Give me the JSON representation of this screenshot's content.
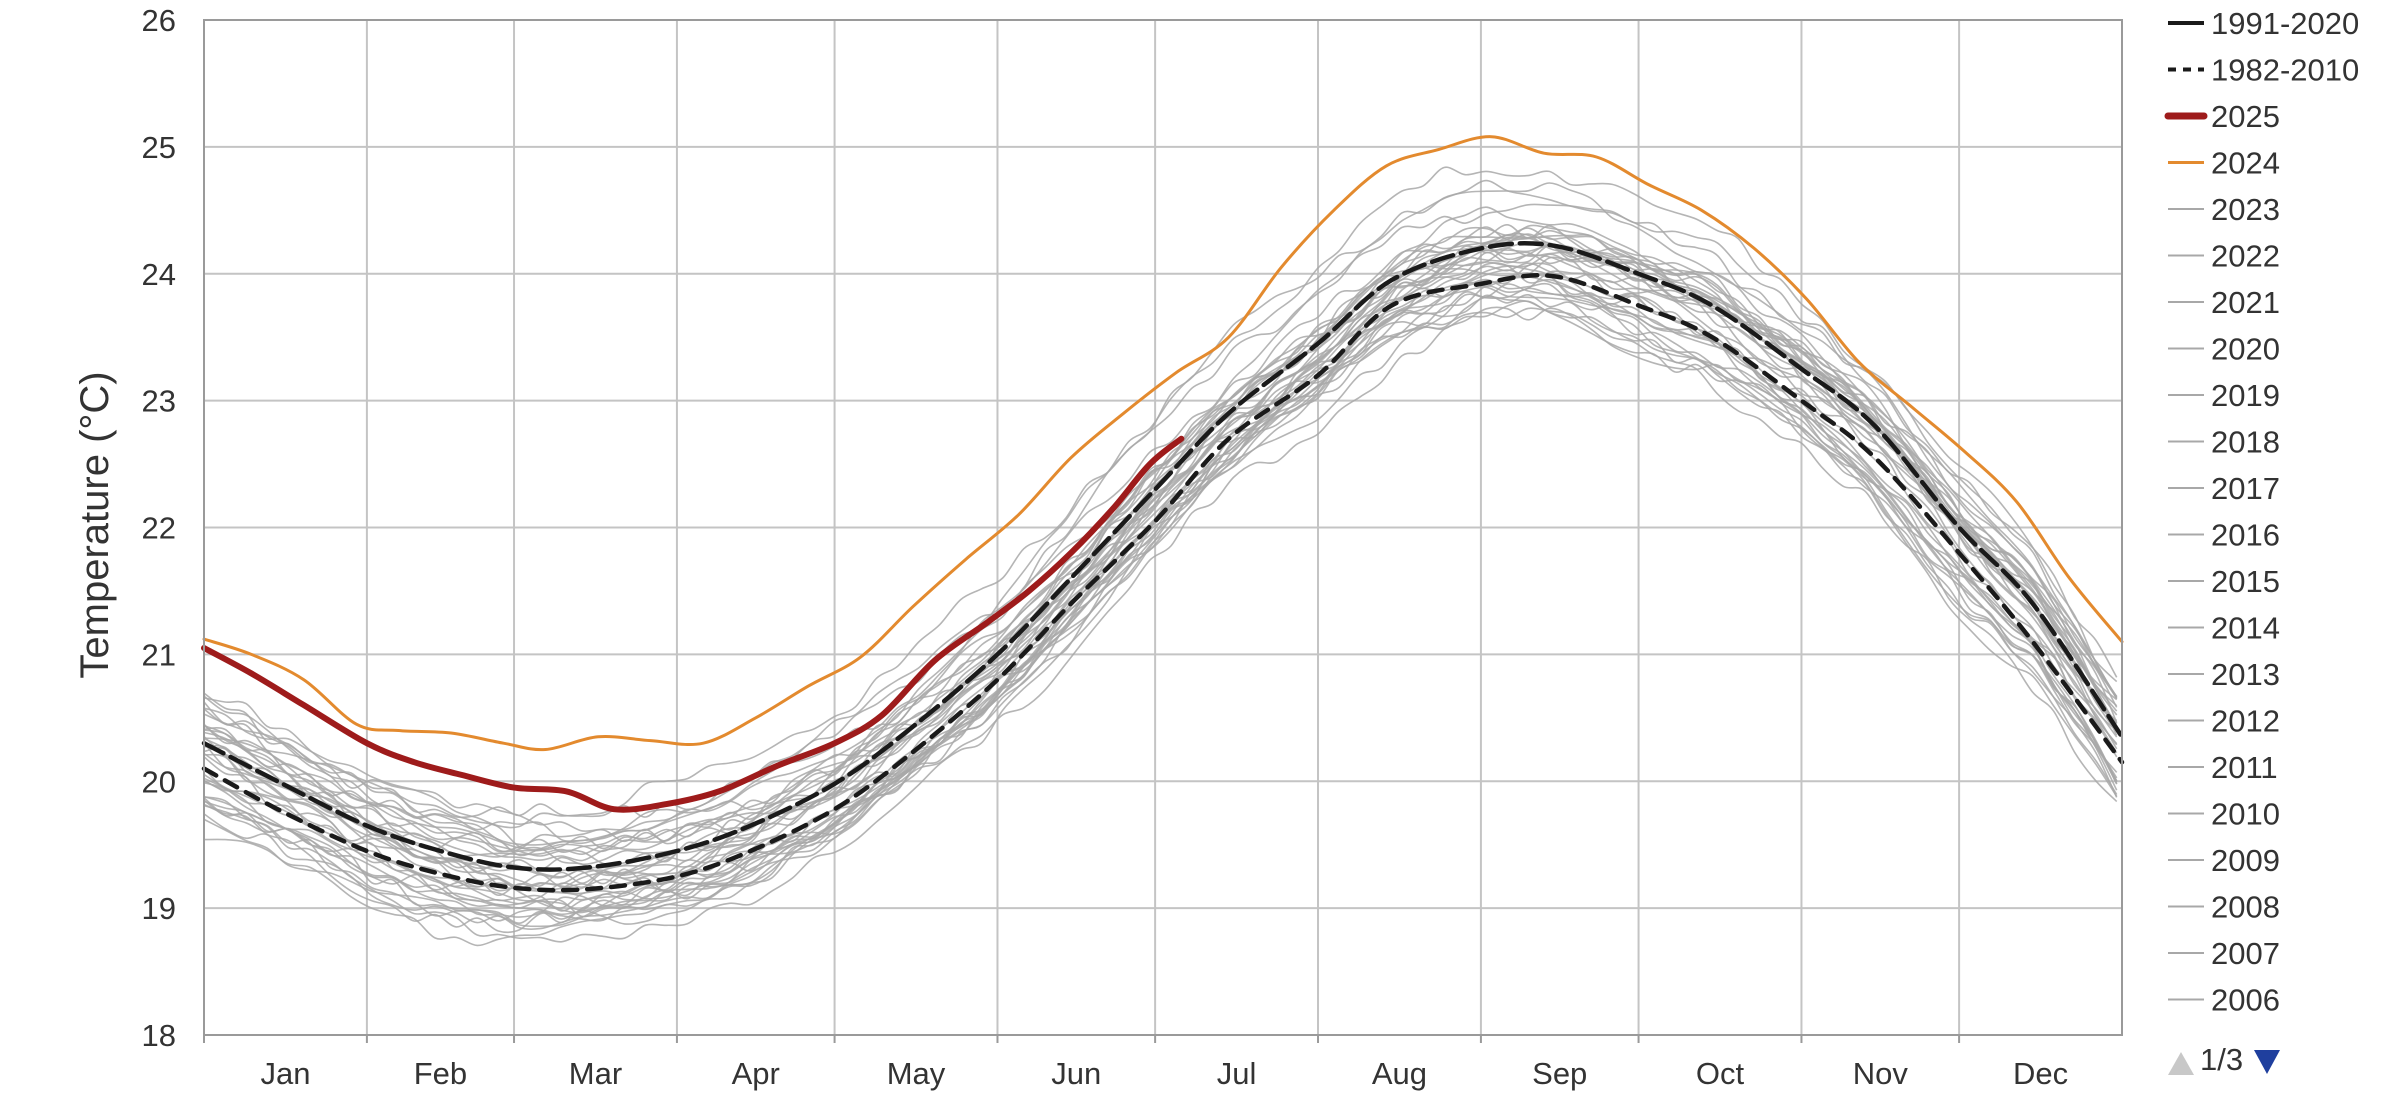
{
  "chart_data": {
    "type": "line",
    "ylabel": "Temperature (°C)",
    "xlabel": "",
    "title": "",
    "ylim": [
      18,
      26
    ],
    "yticks": [
      "18",
      "19",
      "20",
      "21",
      "22",
      "23",
      "24",
      "25",
      "26"
    ],
    "months": [
      "Jan",
      "Feb",
      "Mar",
      "Apr",
      "May",
      "Jun",
      "Jul",
      "Aug",
      "Sep",
      "Oct",
      "Nov",
      "Dec"
    ],
    "xrange_days": [
      1,
      366
    ],
    "grid": true,
    "legend_position": "right",
    "series": [
      {
        "name": "1991-2020",
        "style": "solid",
        "color": "#1a1a1a",
        "points": [
          [
            1,
            20.3
          ],
          [
            15,
            20.0
          ],
          [
            32,
            19.65
          ],
          [
            46,
            19.45
          ],
          [
            60,
            19.32
          ],
          [
            74,
            19.32
          ],
          [
            91,
            19.45
          ],
          [
            105,
            19.65
          ],
          [
            121,
            19.98
          ],
          [
            135,
            20.4
          ],
          [
            152,
            21.0
          ],
          [
            166,
            21.6
          ],
          [
            182,
            22.3
          ],
          [
            196,
            22.9
          ],
          [
            213,
            23.45
          ],
          [
            227,
            23.95
          ],
          [
            244,
            24.2
          ],
          [
            258,
            24.22
          ],
          [
            274,
            24.0
          ],
          [
            288,
            23.75
          ],
          [
            305,
            23.25
          ],
          [
            319,
            22.8
          ],
          [
            335,
            22.0
          ],
          [
            349,
            21.4
          ],
          [
            366,
            20.35
          ]
        ]
      },
      {
        "name": "1982-2010",
        "style": "dashed",
        "color": "#1a1a1a",
        "points": [
          [
            1,
            20.1
          ],
          [
            15,
            19.78
          ],
          [
            32,
            19.45
          ],
          [
            46,
            19.27
          ],
          [
            60,
            19.16
          ],
          [
            74,
            19.15
          ],
          [
            91,
            19.25
          ],
          [
            105,
            19.45
          ],
          [
            121,
            19.78
          ],
          [
            135,
            20.2
          ],
          [
            152,
            20.8
          ],
          [
            166,
            21.4
          ],
          [
            182,
            22.05
          ],
          [
            196,
            22.7
          ],
          [
            213,
            23.2
          ],
          [
            227,
            23.75
          ],
          [
            244,
            23.92
          ],
          [
            258,
            23.98
          ],
          [
            274,
            23.75
          ],
          [
            288,
            23.5
          ],
          [
            305,
            23.0
          ],
          [
            319,
            22.55
          ],
          [
            335,
            21.8
          ],
          [
            349,
            21.1
          ],
          [
            366,
            20.15
          ]
        ]
      },
      {
        "name": "2025",
        "style": "solid",
        "color": "#9e1b1b",
        "points": [
          [
            1,
            21.05
          ],
          [
            10,
            20.85
          ],
          [
            20,
            20.6
          ],
          [
            32,
            20.3
          ],
          [
            41,
            20.15
          ],
          [
            50,
            20.05
          ],
          [
            60,
            19.95
          ],
          [
            70,
            19.92
          ],
          [
            79,
            19.78
          ],
          [
            89,
            19.82
          ],
          [
            99,
            19.92
          ],
          [
            110,
            20.12
          ],
          [
            121,
            20.3
          ],
          [
            130,
            20.52
          ],
          [
            140,
            20.95
          ],
          [
            150,
            21.25
          ],
          [
            158,
            21.5
          ],
          [
            166,
            21.8
          ],
          [
            174,
            22.15
          ],
          [
            181,
            22.5
          ],
          [
            187,
            22.7
          ]
        ]
      },
      {
        "name": "2024",
        "style": "solid",
        "color": "#e38a2e",
        "points": [
          [
            1,
            21.12
          ],
          [
            10,
            21.0
          ],
          [
            20,
            20.8
          ],
          [
            30,
            20.45
          ],
          [
            38,
            20.4
          ],
          [
            48,
            20.38
          ],
          [
            58,
            20.3
          ],
          [
            66,
            20.25
          ],
          [
            76,
            20.35
          ],
          [
            86,
            20.32
          ],
          [
            96,
            20.3
          ],
          [
            106,
            20.5
          ],
          [
            116,
            20.75
          ],
          [
            126,
            20.98
          ],
          [
            136,
            21.38
          ],
          [
            146,
            21.75
          ],
          [
            156,
            22.1
          ],
          [
            166,
            22.55
          ],
          [
            176,
            22.9
          ],
          [
            186,
            23.22
          ],
          [
            196,
            23.5
          ],
          [
            206,
            24.05
          ],
          [
            216,
            24.5
          ],
          [
            226,
            24.85
          ],
          [
            236,
            24.98
          ],
          [
            246,
            25.08
          ],
          [
            256,
            24.95
          ],
          [
            266,
            24.92
          ],
          [
            276,
            24.7
          ],
          [
            286,
            24.5
          ],
          [
            296,
            24.2
          ],
          [
            306,
            23.8
          ],
          [
            316,
            23.3
          ],
          [
            326,
            22.95
          ],
          [
            336,
            22.6
          ],
          [
            346,
            22.2
          ],
          [
            356,
            21.6
          ],
          [
            366,
            21.1
          ]
        ]
      }
    ],
    "envelope_label_note": "",
    "other_years": [
      "2023",
      "2022",
      "2021",
      "2020",
      "2019",
      "2018",
      "2017",
      "2016",
      "2015",
      "2014",
      "2013",
      "2012",
      "2011",
      "2010",
      "2009",
      "2008",
      "2007",
      "2006"
    ]
  },
  "legend": {
    "items": [
      {
        "label": "1991-2020",
        "kind": "solid-black"
      },
      {
        "label": "1982-2010",
        "kind": "dashed-black"
      },
      {
        "label": "2025",
        "kind": "thick-red"
      },
      {
        "label": "2024",
        "kind": "orange"
      },
      {
        "label": "2023",
        "kind": "gray"
      },
      {
        "label": "2022",
        "kind": "gray"
      },
      {
        "label": "2021",
        "kind": "gray"
      },
      {
        "label": "2020",
        "kind": "gray"
      },
      {
        "label": "2019",
        "kind": "gray"
      },
      {
        "label": "2018",
        "kind": "gray"
      },
      {
        "label": "2017",
        "kind": "gray"
      },
      {
        "label": "2016",
        "kind": "gray"
      },
      {
        "label": "2015",
        "kind": "gray"
      },
      {
        "label": "2014",
        "kind": "gray"
      },
      {
        "label": "2013",
        "kind": "gray"
      },
      {
        "label": "2012",
        "kind": "gray"
      },
      {
        "label": "2011",
        "kind": "gray"
      },
      {
        "label": "2010",
        "kind": "gray"
      },
      {
        "label": "2009",
        "kind": "gray"
      },
      {
        "label": "2008",
        "kind": "gray"
      },
      {
        "label": "2007",
        "kind": "gray"
      },
      {
        "label": "2006",
        "kind": "gray"
      }
    ],
    "pager": {
      "label": "1/3",
      "prev_icon": "triangle-up-icon",
      "next_icon": "triangle-down-icon",
      "prev_color": "#c8c8c8",
      "next_color": "#1f3f9e"
    }
  },
  "colors": {
    "grid": "#c4c4c4",
    "axis": "#9a9a9a",
    "gray_years": "#a8a8a8"
  }
}
